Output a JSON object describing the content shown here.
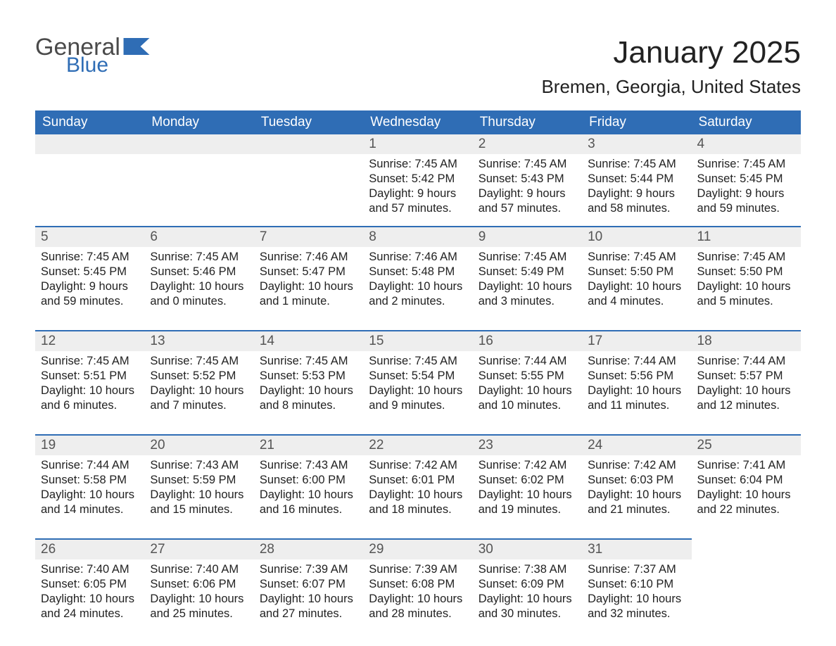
{
  "logo": {
    "word1": "General",
    "word2": "Blue",
    "flag_color": "#2f6db5",
    "word1_color": "#4a4a4a",
    "word2_color": "#2f6db5"
  },
  "title": "January 2025",
  "location": "Bremen, Georgia, United States",
  "colors": {
    "header_bg": "#2f6db5",
    "header_text": "#ffffff",
    "dayhead_bg": "#eeeeee",
    "dayhead_border": "#2f6db5",
    "body_text": "#222222",
    "page_bg": "#ffffff"
  },
  "fonts": {
    "title_size": 44,
    "location_size": 26,
    "header_size": 19,
    "daynum_size": 19,
    "body_size": 16.5
  },
  "weekdays": [
    "Sunday",
    "Monday",
    "Tuesday",
    "Wednesday",
    "Thursday",
    "Friday",
    "Saturday"
  ],
  "first_weekday_index": 3,
  "days_in_month": 31,
  "days": {
    "1": {
      "sunrise": "7:45 AM",
      "sunset": "5:42 PM",
      "daylight": "9 hours and 57 minutes."
    },
    "2": {
      "sunrise": "7:45 AM",
      "sunset": "5:43 PM",
      "daylight": "9 hours and 57 minutes."
    },
    "3": {
      "sunrise": "7:45 AM",
      "sunset": "5:44 PM",
      "daylight": "9 hours and 58 minutes."
    },
    "4": {
      "sunrise": "7:45 AM",
      "sunset": "5:45 PM",
      "daylight": "9 hours and 59 minutes."
    },
    "5": {
      "sunrise": "7:45 AM",
      "sunset": "5:45 PM",
      "daylight": "9 hours and 59 minutes."
    },
    "6": {
      "sunrise": "7:45 AM",
      "sunset": "5:46 PM",
      "daylight": "10 hours and 0 minutes."
    },
    "7": {
      "sunrise": "7:46 AM",
      "sunset": "5:47 PM",
      "daylight": "10 hours and 1 minute."
    },
    "8": {
      "sunrise": "7:46 AM",
      "sunset": "5:48 PM",
      "daylight": "10 hours and 2 minutes."
    },
    "9": {
      "sunrise": "7:45 AM",
      "sunset": "5:49 PM",
      "daylight": "10 hours and 3 minutes."
    },
    "10": {
      "sunrise": "7:45 AM",
      "sunset": "5:50 PM",
      "daylight": "10 hours and 4 minutes."
    },
    "11": {
      "sunrise": "7:45 AM",
      "sunset": "5:50 PM",
      "daylight": "10 hours and 5 minutes."
    },
    "12": {
      "sunrise": "7:45 AM",
      "sunset": "5:51 PM",
      "daylight": "10 hours and 6 minutes."
    },
    "13": {
      "sunrise": "7:45 AM",
      "sunset": "5:52 PM",
      "daylight": "10 hours and 7 minutes."
    },
    "14": {
      "sunrise": "7:45 AM",
      "sunset": "5:53 PM",
      "daylight": "10 hours and 8 minutes."
    },
    "15": {
      "sunrise": "7:45 AM",
      "sunset": "5:54 PM",
      "daylight": "10 hours and 9 minutes."
    },
    "16": {
      "sunrise": "7:44 AM",
      "sunset": "5:55 PM",
      "daylight": "10 hours and 10 minutes."
    },
    "17": {
      "sunrise": "7:44 AM",
      "sunset": "5:56 PM",
      "daylight": "10 hours and 11 minutes."
    },
    "18": {
      "sunrise": "7:44 AM",
      "sunset": "5:57 PM",
      "daylight": "10 hours and 12 minutes."
    },
    "19": {
      "sunrise": "7:44 AM",
      "sunset": "5:58 PM",
      "daylight": "10 hours and 14 minutes."
    },
    "20": {
      "sunrise": "7:43 AM",
      "sunset": "5:59 PM",
      "daylight": "10 hours and 15 minutes."
    },
    "21": {
      "sunrise": "7:43 AM",
      "sunset": "6:00 PM",
      "daylight": "10 hours and 16 minutes."
    },
    "22": {
      "sunrise": "7:42 AM",
      "sunset": "6:01 PM",
      "daylight": "10 hours and 18 minutes."
    },
    "23": {
      "sunrise": "7:42 AM",
      "sunset": "6:02 PM",
      "daylight": "10 hours and 19 minutes."
    },
    "24": {
      "sunrise": "7:42 AM",
      "sunset": "6:03 PM",
      "daylight": "10 hours and 21 minutes."
    },
    "25": {
      "sunrise": "7:41 AM",
      "sunset": "6:04 PM",
      "daylight": "10 hours and 22 minutes."
    },
    "26": {
      "sunrise": "7:40 AM",
      "sunset": "6:05 PM",
      "daylight": "10 hours and 24 minutes."
    },
    "27": {
      "sunrise": "7:40 AM",
      "sunset": "6:06 PM",
      "daylight": "10 hours and 25 minutes."
    },
    "28": {
      "sunrise": "7:39 AM",
      "sunset": "6:07 PM",
      "daylight": "10 hours and 27 minutes."
    },
    "29": {
      "sunrise": "7:39 AM",
      "sunset": "6:08 PM",
      "daylight": "10 hours and 28 minutes."
    },
    "30": {
      "sunrise": "7:38 AM",
      "sunset": "6:09 PM",
      "daylight": "10 hours and 30 minutes."
    },
    "31": {
      "sunrise": "7:37 AM",
      "sunset": "6:10 PM",
      "daylight": "10 hours and 32 minutes."
    }
  },
  "labels": {
    "sunrise": "Sunrise:",
    "sunset": "Sunset:",
    "daylight": "Daylight:"
  }
}
